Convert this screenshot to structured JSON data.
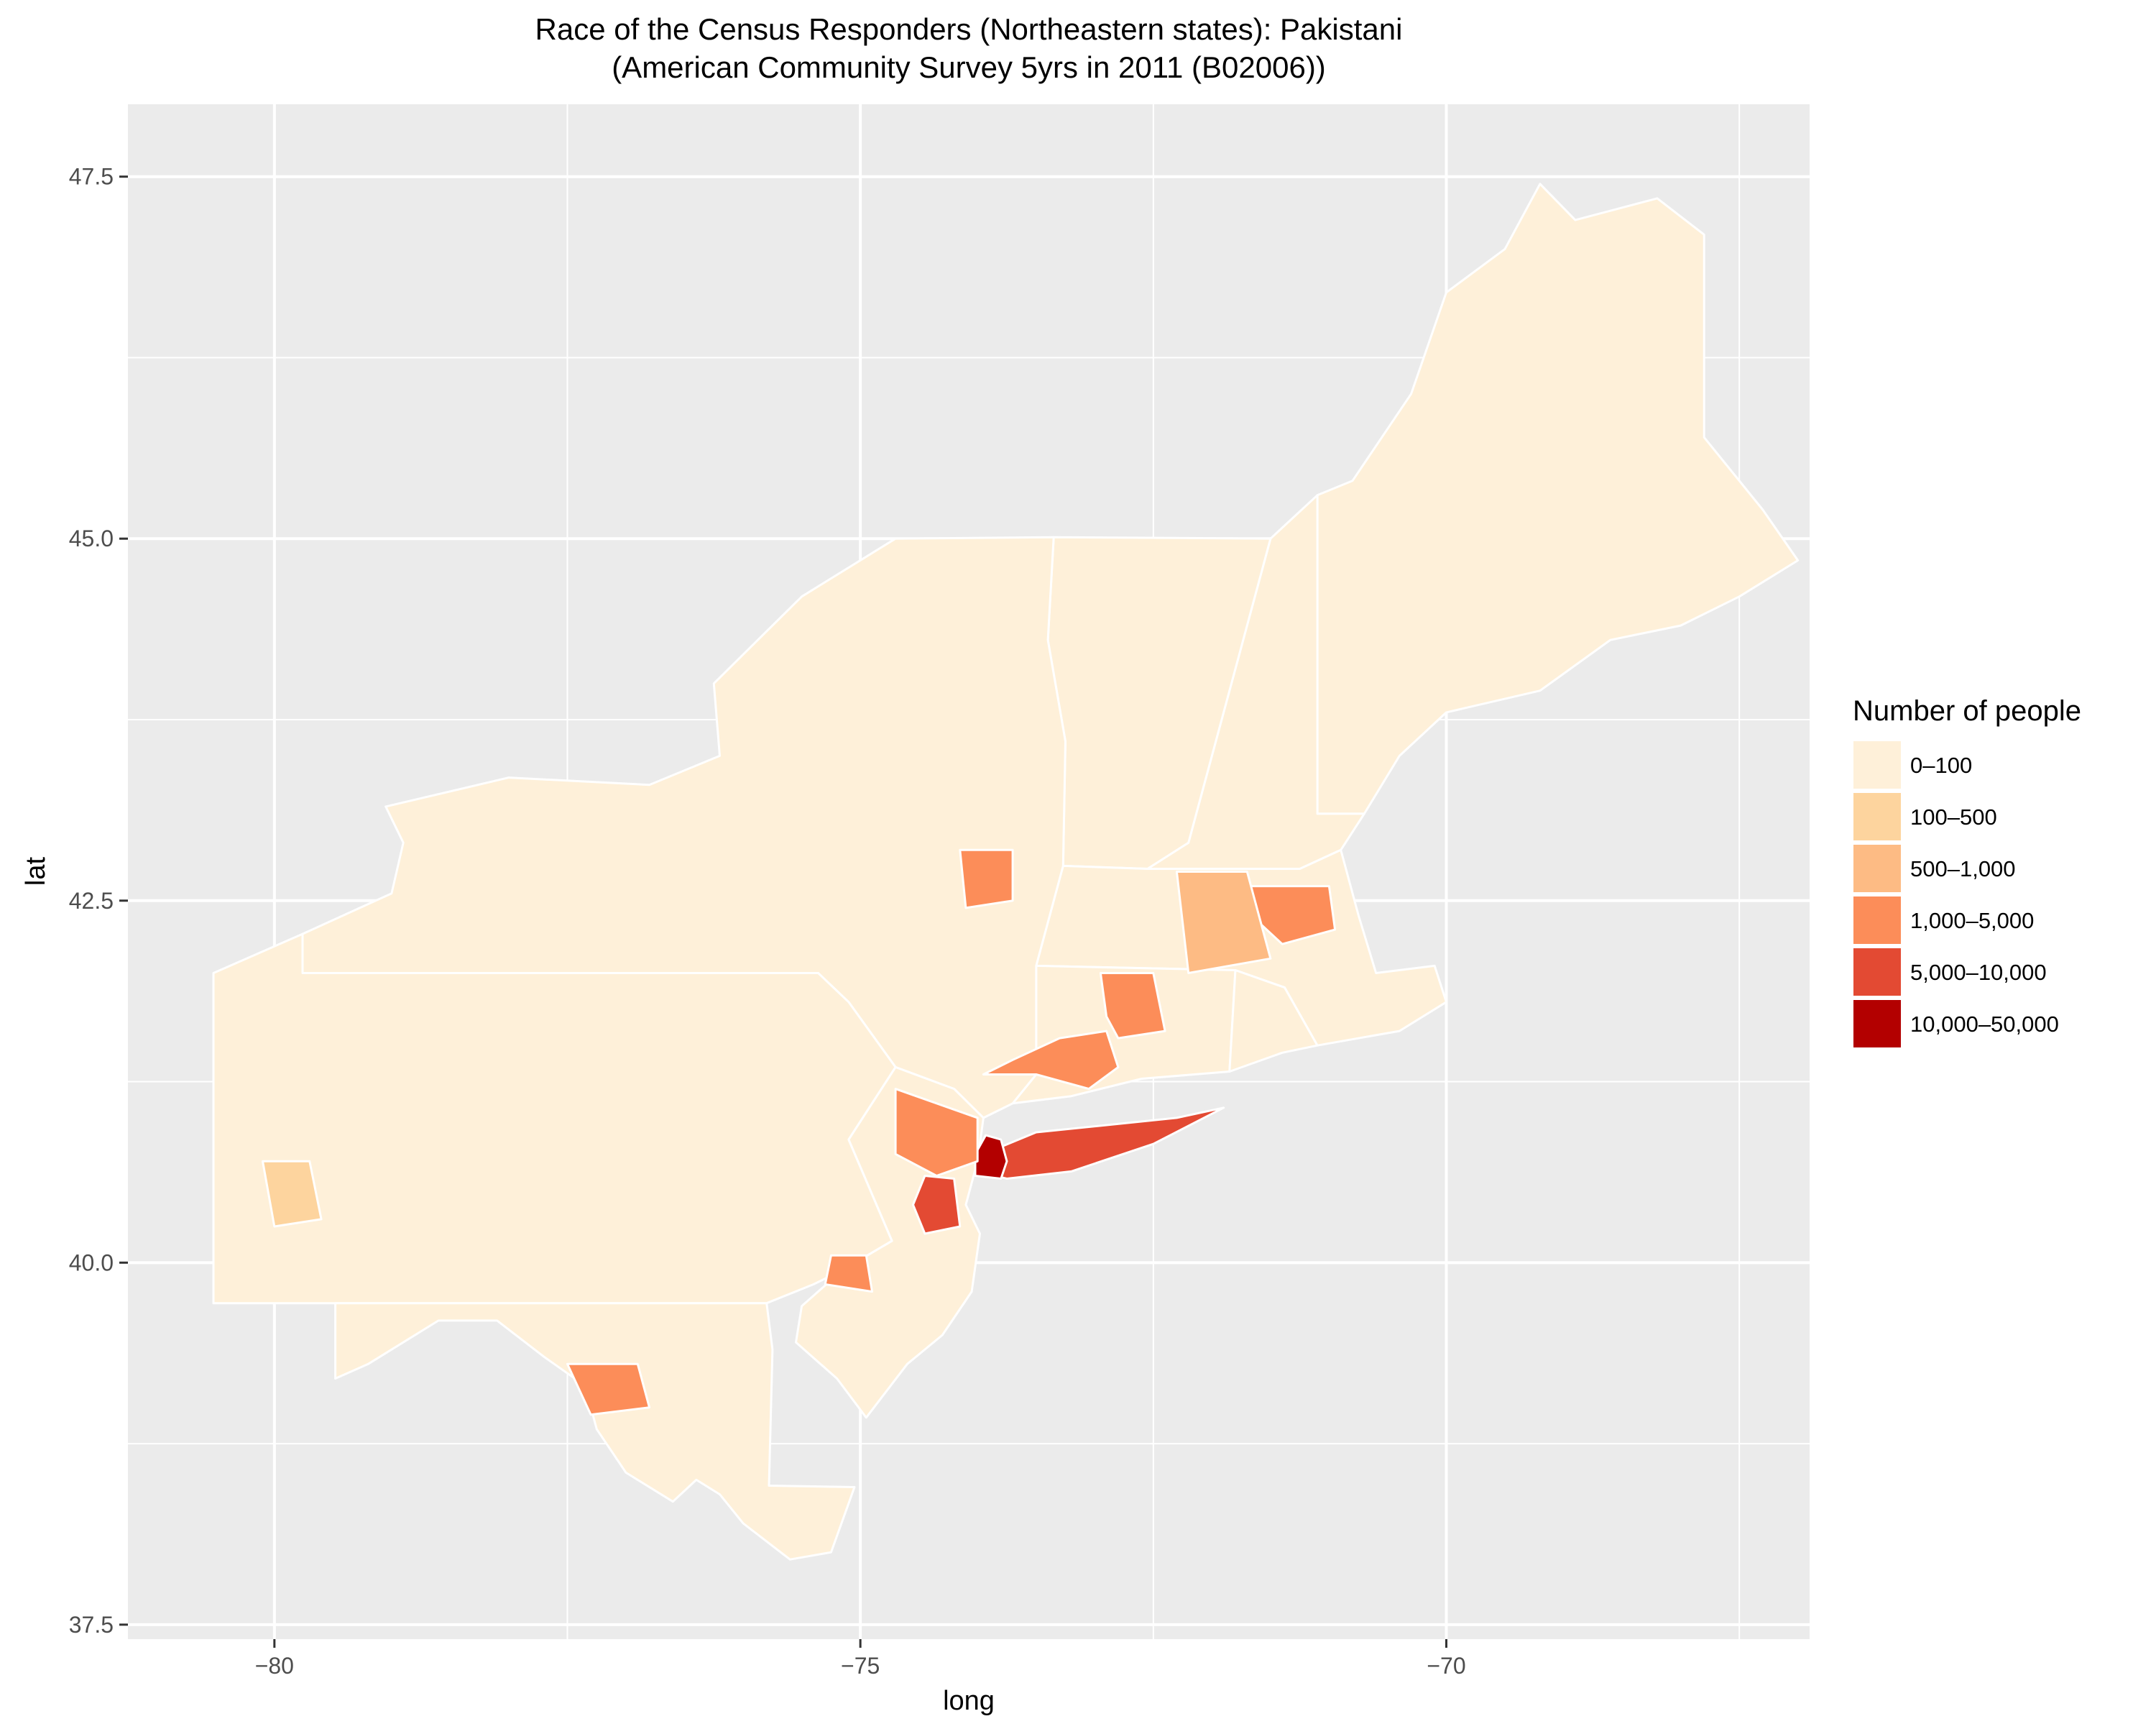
{
  "title_lines": [
    "Race of the Census Responders (Northeastern states): Pakistani",
    "(American Community Survey 5yrs in 2011 (B02006))"
  ],
  "axes": {
    "x": {
      "label": "long",
      "ticks": [
        {
          "value": -80,
          "label": "−80"
        },
        {
          "value": -75,
          "label": "−75"
        },
        {
          "value": -70,
          "label": "−70"
        }
      ],
      "range": [
        -81.25,
        -66.9
      ]
    },
    "y": {
      "label": "lat",
      "ticks": [
        {
          "value": 37.5,
          "label": "37.5"
        },
        {
          "value": 40.0,
          "label": "40.0"
        },
        {
          "value": 42.5,
          "label": "42.5"
        },
        {
          "value": 45.0,
          "label": "45.0"
        },
        {
          "value": 47.5,
          "label": "47.5"
        }
      ],
      "range": [
        37.4,
        48.0
      ]
    },
    "grid": true
  },
  "legend": {
    "title": "Number of people",
    "placement": "right",
    "items": [
      {
        "label": "0–100",
        "color": "#FEF0D9"
      },
      {
        "label": "100–500",
        "color": "#FDD49E"
      },
      {
        "label": "500–1,000",
        "color": "#FDBB84"
      },
      {
        "label": "1,000–5,000",
        "color": "#FC8D59"
      },
      {
        "label": "5,000–10,000",
        "color": "#E34A33"
      },
      {
        "label": "10,000–50,000",
        "color": "#B30000"
      }
    ]
  },
  "colors": {
    "panel": "#EBEBEB",
    "grid": "#FFFFFF",
    "border": "#FFFFFF"
  },
  "chart_data": {
    "type": "choropleth",
    "region": "Northeastern states",
    "variable": "Pakistani",
    "categories": [
      "0–100",
      "100–500",
      "500–1,000",
      "1,000–5,000",
      "5,000–10,000",
      "10,000–50,000"
    ],
    "areas": [
      {
        "name": "maine-counties",
        "class": 0,
        "outline": [
          [
            -71.1,
            43.1
          ],
          [
            -70.7,
            43.1
          ],
          [
            -70.4,
            43.5
          ],
          [
            -70.0,
            43.8
          ],
          [
            -69.2,
            43.95
          ],
          [
            -68.6,
            44.3
          ],
          [
            -68.0,
            44.4
          ],
          [
            -67.5,
            44.6
          ],
          [
            -67.0,
            44.85
          ],
          [
            -67.3,
            45.2
          ],
          [
            -67.8,
            45.7
          ],
          [
            -67.8,
            47.1
          ],
          [
            -68.2,
            47.35
          ],
          [
            -68.9,
            47.2
          ],
          [
            -69.2,
            47.45
          ],
          [
            -69.5,
            47.0
          ],
          [
            -70.0,
            46.7
          ],
          [
            -70.3,
            46.0
          ],
          [
            -70.8,
            45.4
          ],
          [
            -71.1,
            45.3
          ]
        ]
      },
      {
        "name": "new-hampshire-counties",
        "class": 0,
        "outline": [
          [
            -72.55,
            42.72
          ],
          [
            -71.25,
            42.72
          ],
          [
            -70.9,
            42.85
          ],
          [
            -70.7,
            43.1
          ],
          [
            -71.1,
            43.1
          ],
          [
            -71.1,
            45.3
          ],
          [
            -71.5,
            45.0
          ],
          [
            -72.2,
            42.9
          ]
        ]
      },
      {
        "name": "vermont-counties",
        "class": 0,
        "outline": [
          [
            -73.27,
            42.74
          ],
          [
            -72.55,
            42.72
          ],
          [
            -72.2,
            42.9
          ],
          [
            -71.5,
            45.0
          ],
          [
            -73.35,
            45.01
          ],
          [
            -73.4,
            44.3
          ],
          [
            -73.25,
            43.6
          ]
        ]
      },
      {
        "name": "massachusetts-counties",
        "class": 0,
        "outline": [
          [
            -73.5,
            42.05
          ],
          [
            -71.8,
            42.02
          ],
          [
            -71.38,
            41.9
          ],
          [
            -71.1,
            41.5
          ],
          [
            -70.4,
            41.6
          ],
          [
            -70.0,
            41.8
          ],
          [
            -70.1,
            42.05
          ],
          [
            -70.6,
            42.0
          ],
          [
            -70.75,
            42.4
          ],
          [
            -70.9,
            42.85
          ],
          [
            -71.25,
            42.72
          ],
          [
            -72.55,
            42.72
          ],
          [
            -73.27,
            42.74
          ]
        ]
      },
      {
        "name": "connecticut-counties",
        "class": 0,
        "outline": [
          [
            -73.7,
            41.1
          ],
          [
            -73.2,
            41.15
          ],
          [
            -72.6,
            41.27
          ],
          [
            -71.85,
            41.32
          ],
          [
            -71.8,
            42.02
          ],
          [
            -73.5,
            42.05
          ],
          [
            -73.5,
            41.3
          ]
        ]
      },
      {
        "name": "rhode-island-counties",
        "class": 0,
        "outline": [
          [
            -71.85,
            41.32
          ],
          [
            -71.4,
            41.45
          ],
          [
            -71.1,
            41.5
          ],
          [
            -71.38,
            41.9
          ],
          [
            -71.8,
            42.02
          ]
        ]
      },
      {
        "name": "new-york-counties",
        "class": 0,
        "outline": [
          [
            -79.76,
            42.0
          ],
          [
            -79.76,
            42.27
          ],
          [
            -79.0,
            42.55
          ],
          [
            -78.9,
            42.9
          ],
          [
            -79.05,
            43.15
          ],
          [
            -78.0,
            43.35
          ],
          [
            -76.8,
            43.3
          ],
          [
            -76.2,
            43.5
          ],
          [
            -76.25,
            44.0
          ],
          [
            -75.5,
            44.6
          ],
          [
            -74.7,
            45.0
          ],
          [
            -73.35,
            45.01
          ],
          [
            -73.4,
            44.3
          ],
          [
            -73.25,
            43.6
          ],
          [
            -73.27,
            42.74
          ],
          [
            -73.5,
            42.05
          ],
          [
            -73.5,
            41.3
          ],
          [
            -73.7,
            41.1
          ],
          [
            -73.95,
            41.0
          ],
          [
            -74.2,
            41.2
          ],
          [
            -74.7,
            41.35
          ],
          [
            -75.1,
            41.8
          ],
          [
            -75.36,
            42.0
          ]
        ]
      },
      {
        "name": "pennsylvania-counties",
        "class": 0,
        "outline": [
          [
            -80.52,
            39.72
          ],
          [
            -80.52,
            42.0
          ],
          [
            -79.76,
            42.27
          ],
          [
            -79.76,
            42.0
          ],
          [
            -75.36,
            42.0
          ],
          [
            -75.1,
            41.8
          ],
          [
            -74.7,
            41.35
          ],
          [
            -75.1,
            40.85
          ],
          [
            -74.73,
            40.15
          ],
          [
            -75.15,
            39.95
          ],
          [
            -75.4,
            39.85
          ],
          [
            -75.8,
            39.72
          ]
        ]
      },
      {
        "name": "new-jersey-counties",
        "class": 0,
        "outline": [
          [
            -74.7,
            41.35
          ],
          [
            -74.2,
            41.2
          ],
          [
            -73.95,
            41.0
          ],
          [
            -74.0,
            40.7
          ],
          [
            -74.1,
            40.4
          ],
          [
            -73.98,
            40.2
          ],
          [
            -74.05,
            39.8
          ],
          [
            -74.3,
            39.5
          ],
          [
            -74.6,
            39.3
          ],
          [
            -74.95,
            38.93
          ],
          [
            -75.2,
            39.2
          ],
          [
            -75.55,
            39.45
          ],
          [
            -75.5,
            39.7
          ],
          [
            -75.15,
            39.95
          ],
          [
            -74.73,
            40.15
          ],
          [
            -75.1,
            40.85
          ]
        ]
      },
      {
        "name": "maryland-delaware-counties",
        "class": 0,
        "outline": [
          [
            -79.48,
            39.72
          ],
          [
            -75.8,
            39.72
          ],
          [
            -75.75,
            39.4
          ],
          [
            -75.78,
            38.46
          ],
          [
            -75.05,
            38.45
          ],
          [
            -75.25,
            38.0
          ],
          [
            -75.6,
            37.95
          ],
          [
            -76.0,
            38.2
          ],
          [
            -76.2,
            38.4
          ],
          [
            -76.4,
            38.5
          ],
          [
            -76.6,
            38.35
          ],
          [
            -77.0,
            38.55
          ],
          [
            -77.25,
            38.85
          ],
          [
            -77.35,
            39.15
          ],
          [
            -77.7,
            39.35
          ],
          [
            -78.1,
            39.6
          ],
          [
            -78.6,
            39.6
          ],
          [
            -79.2,
            39.3
          ],
          [
            -79.48,
            39.2
          ]
        ]
      },
      {
        "name": "long-island",
        "class": 4,
        "outline": [
          [
            -73.95,
            40.62
          ],
          [
            -73.75,
            40.58
          ],
          [
            -73.2,
            40.63
          ],
          [
            -72.5,
            40.82
          ],
          [
            -71.9,
            41.07
          ],
          [
            -72.3,
            41.0
          ],
          [
            -72.9,
            40.95
          ],
          [
            -73.5,
            40.9
          ],
          [
            -73.8,
            40.8
          ]
        ]
      },
      {
        "name": "new-york-city",
        "class": 5,
        "outline": [
          [
            -74.02,
            40.6
          ],
          [
            -73.8,
            40.58
          ],
          [
            -73.75,
            40.7
          ],
          [
            -73.8,
            40.85
          ],
          [
            -73.93,
            40.88
          ],
          [
            -74.02,
            40.75
          ]
        ]
      },
      {
        "name": "northern-new-jersey",
        "class": 3,
        "outline": [
          [
            -74.7,
            41.2
          ],
          [
            -74.0,
            41.0
          ],
          [
            -74.0,
            40.7
          ],
          [
            -74.35,
            40.6
          ],
          [
            -74.7,
            40.75
          ]
        ]
      },
      {
        "name": "central-new-jersey",
        "class": 4,
        "outline": [
          [
            -74.45,
            40.6
          ],
          [
            -74.2,
            40.58
          ],
          [
            -74.15,
            40.25
          ],
          [
            -74.45,
            40.2
          ],
          [
            -74.55,
            40.4
          ]
        ]
      },
      {
        "name": "westchester-fairfield",
        "class": 3,
        "outline": [
          [
            -73.95,
            41.3
          ],
          [
            -73.5,
            41.3
          ],
          [
            -73.05,
            41.2
          ],
          [
            -72.8,
            41.35
          ],
          [
            -72.9,
            41.6
          ],
          [
            -73.3,
            41.55
          ],
          [
            -73.7,
            41.4
          ]
        ]
      },
      {
        "name": "hartford-area",
        "class": 3,
        "outline": [
          [
            -72.95,
            42.0
          ],
          [
            -72.5,
            42.0
          ],
          [
            -72.4,
            41.6
          ],
          [
            -72.8,
            41.55
          ],
          [
            -72.9,
            41.7
          ]
        ]
      },
      {
        "name": "boston-area",
        "class": 3,
        "outline": [
          [
            -71.7,
            42.6
          ],
          [
            -71.0,
            42.6
          ],
          [
            -70.95,
            42.3
          ],
          [
            -71.4,
            42.2
          ],
          [
            -71.6,
            42.35
          ]
        ]
      },
      {
        "name": "worcester-area",
        "class": 2,
        "outline": [
          [
            -72.3,
            42.7
          ],
          [
            -71.7,
            42.7
          ],
          [
            -71.5,
            42.1
          ],
          [
            -72.2,
            42.0
          ]
        ]
      },
      {
        "name": "philadelphia-area",
        "class": 3,
        "outline": [
          [
            -75.25,
            40.05
          ],
          [
            -74.95,
            40.05
          ],
          [
            -74.9,
            39.8
          ],
          [
            -75.3,
            39.85
          ]
        ]
      },
      {
        "name": "albany-area",
        "class": 3,
        "outline": [
          [
            -74.15,
            42.85
          ],
          [
            -73.7,
            42.85
          ],
          [
            -73.7,
            42.5
          ],
          [
            -74.1,
            42.45
          ]
        ]
      },
      {
        "name": "baltimore-washington",
        "class": 3,
        "outline": [
          [
            -77.5,
            39.3
          ],
          [
            -76.9,
            39.3
          ],
          [
            -76.8,
            39.0
          ],
          [
            -77.3,
            38.95
          ]
        ]
      },
      {
        "name": "pittsburgh-area",
        "class": 1,
        "outline": [
          [
            -80.1,
            40.7
          ],
          [
            -79.7,
            40.7
          ],
          [
            -79.6,
            40.3
          ],
          [
            -80.0,
            40.25
          ]
        ]
      }
    ],
    "note_marks": "County polygons simplified; class index refers to categories"
  }
}
